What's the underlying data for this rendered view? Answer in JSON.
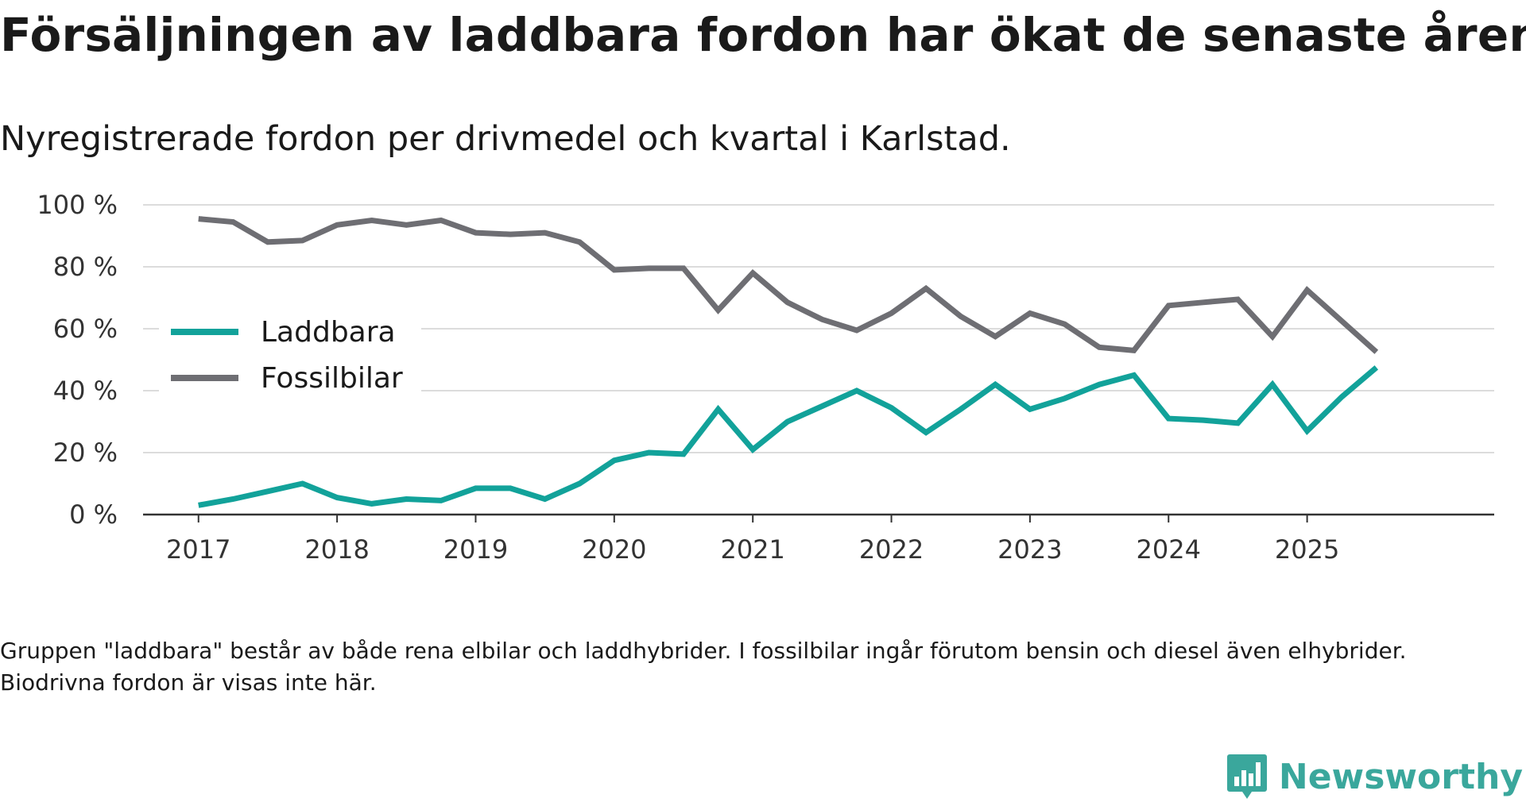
{
  "title": "Försäljningen av laddbara fordon har ökat de senaste åren",
  "subtitle": "Nyregistrerade fordon per drivmedel och kvartal i Karlstad.",
  "note": "Gruppen \"laddbara\" består av både rena elbilar och laddhybrider. I fossilbilar ingår förutom bensin och diesel även elhybrider. Biodrivna fordon är visas inte här.",
  "brand": "Newsworthy",
  "chart_data": {
    "type": "line",
    "title": "Försäljningen av laddbara fordon har ökat de senaste åren",
    "xlabel": "",
    "ylabel": "",
    "ylim": [
      0,
      100
    ],
    "yticks": [
      0,
      20,
      40,
      60,
      80,
      100
    ],
    "ytick_labels": [
      "0 %",
      "20 %",
      "40 %",
      "60 %",
      "80 %",
      "100 %"
    ],
    "xlim": [
      2016.6,
      2026.35
    ],
    "xticks": [
      2017,
      2018,
      2019,
      2020,
      2021,
      2022,
      2023,
      2024,
      2025
    ],
    "xtick_labels": [
      "2017",
      "2018",
      "2019",
      "2020",
      "2021",
      "2022",
      "2023",
      "2024",
      "2025"
    ],
    "legend_position": "left",
    "x": [
      2017,
      2017.25,
      2017.5,
      2017.75,
      2018,
      2018.25,
      2018.5,
      2018.75,
      2019,
      2019.25,
      2019.5,
      2019.75,
      2020,
      2020.25,
      2020.5,
      2020.75,
      2021,
      2021.25,
      2021.5,
      2021.75,
      2022,
      2022.25,
      2022.5,
      2022.75,
      2023,
      2023.25,
      2023.5,
      2023.75,
      2024,
      2024.25,
      2024.5,
      2024.75,
      2025,
      2025.25,
      2025.5
    ],
    "series": [
      {
        "name": "Laddbara",
        "color": "#12a29a",
        "values": [
          3,
          5,
          7.5,
          10,
          5.5,
          3.5,
          5,
          4.5,
          8.5,
          8.5,
          5,
          10,
          17.5,
          20,
          19.5,
          34,
          21,
          30,
          35,
          40,
          34.5,
          26.5,
          34,
          42,
          34,
          37.5,
          42,
          45,
          31,
          30.5,
          29.5,
          42,
          27,
          38,
          47.5
        ]
      },
      {
        "name": "Fossilbilar",
        "color": "#6e6e73",
        "values": [
          95.5,
          94.5,
          88,
          88.5,
          93.5,
          95,
          93.5,
          95,
          91,
          90.5,
          91,
          88,
          79,
          79.5,
          79.5,
          66,
          78,
          68.5,
          63,
          59.5,
          65,
          73,
          64,
          57.5,
          65,
          61.5,
          54,
          53,
          67.5,
          68.5,
          69.5,
          57.5,
          72.5,
          62.5,
          52.5
        ]
      }
    ]
  }
}
